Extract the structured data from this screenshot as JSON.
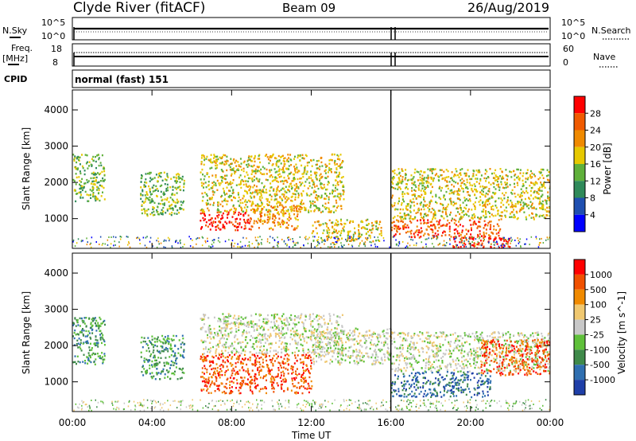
{
  "header": {
    "station": "Clyde River (fitACF)",
    "beam": "Beam 09",
    "date": "26/Aug/2019"
  },
  "strip_nsky": {
    "left_label": "N.Sky",
    "right_label": "N.Search",
    "left_ticks": [
      "10^5",
      "10^0"
    ],
    "right_ticks": [
      "10^5",
      "10^0"
    ]
  },
  "strip_freq": {
    "left_label_1": "Freq.",
    "left_label_2": "[MHz]",
    "right_label": "Nave",
    "left_ticks": [
      "18",
      "8"
    ],
    "right_ticks": [
      "60",
      "0"
    ]
  },
  "cpid": {
    "label": "CPID",
    "value": "normal (fast) 151"
  },
  "chart_data": [
    {
      "type": "heatmap",
      "name": "power",
      "ylabel": "Slant Range [km]",
      "xlabel": "Time UT",
      "x_ticks": [
        "00:00",
        "04:00",
        "08:00",
        "12:00",
        "16:00",
        "20:00",
        "00:00"
      ],
      "x_range_hours": [
        0,
        24
      ],
      "y_ticks": [
        1000,
        2000,
        3000,
        4000
      ],
      "ylim": [
        180,
        4550
      ],
      "colorbar": {
        "label": "Power [dB]",
        "ticks": [
          "4",
          "8",
          "12",
          "16",
          "20",
          "24",
          "28"
        ],
        "colors": [
          "#0000ff",
          "#1f4fb0",
          "#2f8a5a",
          "#5fb03a",
          "#e6c800",
          "#f08a00",
          "#f05a00",
          "#ff0000"
        ]
      },
      "echo_regions": [
        {
          "t0": 0.0,
          "t1": 1.6,
          "r0": 1500,
          "r1": 2800,
          "level": 3
        },
        {
          "t0": 3.4,
          "t1": 5.6,
          "r0": 1100,
          "r1": 2300,
          "level": 3
        },
        {
          "t0": 6.4,
          "t1": 13.6,
          "r0": 1200,
          "r1": 2800,
          "level": 4
        },
        {
          "t0": 6.4,
          "t1": 9.0,
          "r0": 700,
          "r1": 1200,
          "level": 7
        },
        {
          "t0": 9.0,
          "t1": 11.5,
          "r0": 700,
          "r1": 1400,
          "level": 5
        },
        {
          "t0": 12.0,
          "t1": 15.5,
          "r0": 400,
          "r1": 1000,
          "level": 4
        },
        {
          "t0": 16.0,
          "t1": 24.0,
          "r0": 1000,
          "r1": 2400,
          "level": 4
        },
        {
          "t0": 16.0,
          "t1": 21.5,
          "r0": 500,
          "r1": 1000,
          "level": 6
        },
        {
          "t0": 19.0,
          "t1": 22.0,
          "r0": 200,
          "r1": 500,
          "level": 7
        }
      ]
    },
    {
      "type": "heatmap",
      "name": "velocity",
      "ylabel": "Slant Range [km]",
      "xlabel": "Time UT",
      "x_ticks": [
        "00:00",
        "04:00",
        "08:00",
        "12:00",
        "16:00",
        "20:00",
        "00:00"
      ],
      "x_range_hours": [
        0,
        24
      ],
      "y_ticks": [
        1000,
        2000,
        3000,
        4000
      ],
      "ylim": [
        180,
        4550
      ],
      "colorbar": {
        "label": "Velocity [m s^-1]",
        "ticks": [
          "1000",
          "500",
          "100",
          "25",
          "-25",
          "-100",
          "-500",
          "-1000"
        ],
        "colors": [
          "#1f3fa8",
          "#2f6fb0",
          "#3f8a4a",
          "#5fc03a",
          "#c8c8c8",
          "#f0c870",
          "#f08a00",
          "#f05000",
          "#ff0000"
        ]
      },
      "echo_regions": [
        {
          "t0": 0.0,
          "t1": 1.6,
          "r0": 1500,
          "r1": 2800,
          "level": 2
        },
        {
          "t0": 3.4,
          "t1": 5.6,
          "r0": 1100,
          "r1": 2300,
          "level": 2
        },
        {
          "t0": 6.4,
          "t1": 13.6,
          "r0": 1800,
          "r1": 2900,
          "level": 4
        },
        {
          "t0": 6.4,
          "t1": 12.0,
          "r0": 700,
          "r1": 1800,
          "level": 7
        },
        {
          "t0": 12.0,
          "t1": 16.0,
          "r0": 1500,
          "r1": 2500,
          "level": 4
        },
        {
          "t0": 16.0,
          "t1": 24.0,
          "r0": 1300,
          "r1": 2400,
          "level": 4
        },
        {
          "t0": 16.0,
          "t1": 21.0,
          "r0": 600,
          "r1": 1300,
          "level": 1
        },
        {
          "t0": 20.5,
          "t1": 24.0,
          "r0": 1200,
          "r1": 2200,
          "level": 7
        }
      ]
    }
  ]
}
